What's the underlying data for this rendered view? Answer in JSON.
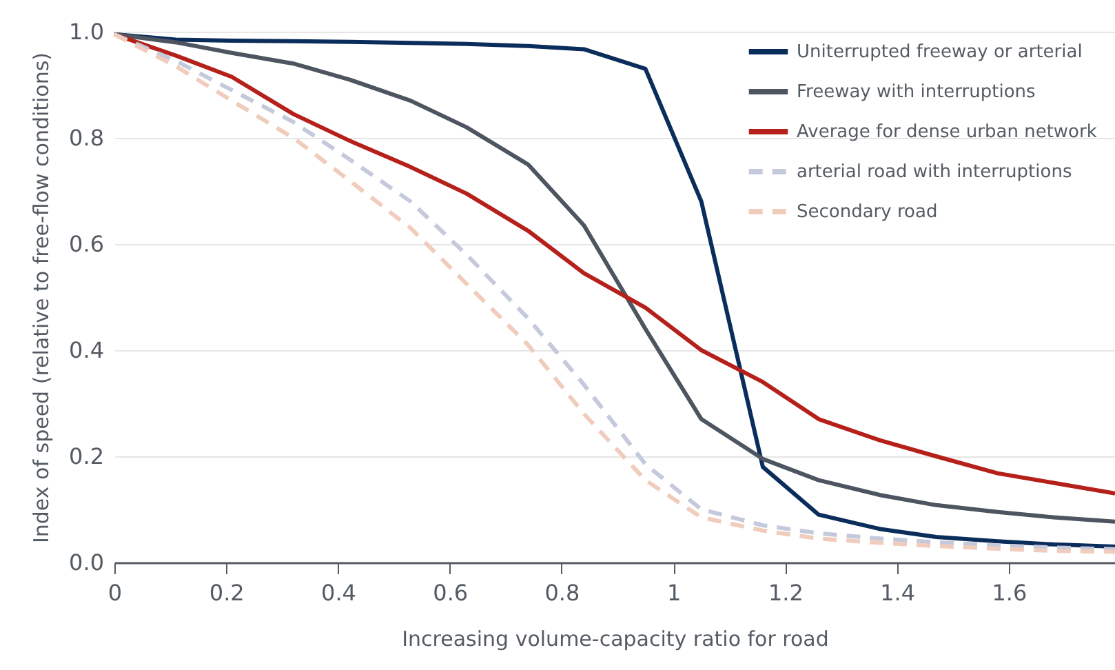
{
  "chart_data": {
    "type": "line",
    "xlabel": "Increasing volume-capacity ratio for road",
    "ylabel": "Index of speed (relative to free-flow conditions)",
    "x": [
      0,
      0.11,
      0.21,
      0.32,
      0.42,
      0.53,
      0.63,
      0.74,
      0.84,
      0.95,
      1.05,
      1.16,
      1.26,
      1.37,
      1.47,
      1.58,
      1.68,
      1.79
    ],
    "series": [
      {
        "name": "Uniterrupted freeway or arterial",
        "color": "#0b2d5b",
        "line_style": "solid",
        "values": [
          0.995,
          0.985,
          0.983,
          0.982,
          0.981,
          0.979,
          0.977,
          0.973,
          0.967,
          0.93,
          0.68,
          0.18,
          0.09,
          0.063,
          0.048,
          0.04,
          0.034,
          0.03
        ]
      },
      {
        "name": "Freeway with interruptions",
        "color": "#4d5560",
        "line_style": "solid",
        "values": [
          0.995,
          0.98,
          0.96,
          0.94,
          0.91,
          0.87,
          0.82,
          0.75,
          0.635,
          0.44,
          0.27,
          0.195,
          0.155,
          0.127,
          0.108,
          0.095,
          0.085,
          0.077
        ]
      },
      {
        "name": "Average for dense urban network",
        "color": "#b5201a",
        "line_style": "solid",
        "values": [
          0.995,
          0.955,
          0.915,
          0.845,
          0.795,
          0.745,
          0.695,
          0.625,
          0.545,
          0.48,
          0.4,
          0.34,
          0.27,
          0.23,
          0.2,
          0.168,
          0.15,
          0.13
        ]
      },
      {
        "name": "arterial road with interruptions",
        "color": "#c5c9dc",
        "line_style": "dashed",
        "values": [
          0.995,
          0.945,
          0.89,
          0.83,
          0.76,
          0.68,
          0.58,
          0.46,
          0.335,
          0.185,
          0.1,
          0.07,
          0.055,
          0.045,
          0.038,
          0.032,
          0.028,
          0.025
        ]
      },
      {
        "name": "Secondary road",
        "color": "#f0ccbc",
        "line_style": "dashed",
        "values": [
          0.995,
          0.935,
          0.87,
          0.8,
          0.72,
          0.63,
          0.525,
          0.41,
          0.28,
          0.155,
          0.085,
          0.06,
          0.045,
          0.037,
          0.031,
          0.026,
          0.022,
          0.02
        ]
      }
    ],
    "xlim": [
      0,
      1.79
    ],
    "xticks": [
      0,
      0.2,
      0.4,
      0.6,
      0.8,
      1,
      1.2,
      1.4,
      1.6
    ],
    "ylim": [
      0,
      1
    ],
    "yticks": [
      {
        "value": 0,
        "label": "0.0"
      },
      {
        "value": 0.2,
        "label": "0.2"
      },
      {
        "value": 0.4,
        "label": "0.4"
      },
      {
        "value": 0.6,
        "label": "0.6"
      },
      {
        "value": 0.8,
        "label": "0.8"
      },
      {
        "value": 1,
        "label": "1.0"
      }
    ],
    "grid": "y",
    "legend": "top right"
  }
}
